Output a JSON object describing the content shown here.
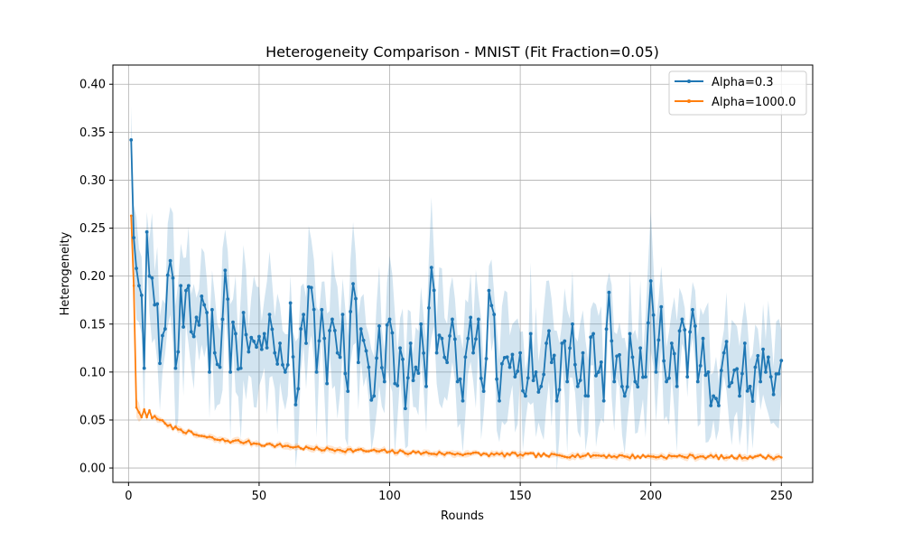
{
  "chart_data": {
    "type": "line",
    "title": "Heterogeneity Comparison - MNIST (Fit Fraction=0.05)",
    "xlabel": "Rounds",
    "ylabel": "Heterogeneity",
    "xlim": [
      -6,
      262
    ],
    "ylim": [
      -0.015,
      0.42
    ],
    "xticks": [
      0,
      50,
      100,
      150,
      200,
      250
    ],
    "yticks": [
      0.0,
      0.05,
      0.1,
      0.15,
      0.2,
      0.25,
      0.3,
      0.35,
      0.4
    ],
    "xtick_labels": [
      "0",
      "50",
      "100",
      "150",
      "200",
      "250"
    ],
    "ytick_labels": [
      "0.00",
      "0.05",
      "0.10",
      "0.15",
      "0.20",
      "0.25",
      "0.30",
      "0.35",
      "0.40"
    ],
    "grid": true,
    "legend_position": "top-right",
    "series": [
      {
        "name": "Alpha=0.3",
        "color": "#1f77b4",
        "band_color": "#1f77b4",
        "marker": "dot",
        "keypoints": [
          [
            1,
            0.342
          ],
          [
            2,
            0.24
          ],
          [
            3,
            0.208
          ],
          [
            4,
            0.19
          ],
          [
            5,
            0.18
          ],
          [
            6,
            0.104
          ],
          [
            7,
            0.246
          ],
          [
            8,
            0.2
          ],
          [
            9,
            0.198
          ],
          [
            10,
            0.17
          ],
          [
            11,
            0.171
          ],
          [
            12,
            0.109
          ],
          [
            13,
            0.138
          ],
          [
            14,
            0.145
          ],
          [
            15,
            0.201
          ],
          [
            16,
            0.216
          ],
          [
            17,
            0.198
          ],
          [
            18,
            0.104
          ],
          [
            19,
            0.121
          ],
          [
            20,
            0.19
          ],
          [
            21,
            0.147
          ],
          [
            22,
            0.185
          ],
          [
            23,
            0.19
          ],
          [
            24,
            0.142
          ],
          [
            25,
            0.137
          ],
          [
            26,
            0.157
          ],
          [
            27,
            0.149
          ],
          [
            28,
            0.179
          ],
          [
            29,
            0.17
          ],
          [
            30,
            0.162
          ],
          [
            31,
            0.1
          ],
          [
            32,
            0.165
          ],
          [
            33,
            0.12
          ],
          [
            34,
            0.108
          ],
          [
            35,
            0.105
          ],
          [
            36,
            0.155
          ],
          [
            37,
            0.206
          ],
          [
            38,
            0.176
          ],
          [
            39,
            0.1
          ],
          [
            40,
            0.152
          ],
          [
            41,
            0.14
          ],
          [
            42,
            0.103
          ],
          [
            43,
            0.104
          ],
          [
            44,
            0.162
          ],
          [
            45,
            0.139
          ],
          [
            46,
            0.121
          ],
          [
            47,
            0.136
          ],
          [
            48,
            0.132
          ],
          [
            49,
            0.126
          ],
          [
            50,
            0.137
          ],
          [
            52,
            0.14
          ],
          [
            54,
            0.16
          ],
          [
            56,
            0.12
          ],
          [
            58,
            0.13
          ],
          [
            60,
            0.1
          ],
          [
            62,
            0.172
          ],
          [
            64,
            0.066
          ],
          [
            66,
            0.145
          ],
          [
            68,
            0.13
          ],
          [
            70,
            0.188
          ],
          [
            72,
            0.1
          ],
          [
            74,
            0.165
          ],
          [
            76,
            0.088
          ],
          [
            78,
            0.155
          ],
          [
            80,
            0.12
          ],
          [
            82,
            0.16
          ],
          [
            84,
            0.08
          ],
          [
            86,
            0.192
          ],
          [
            88,
            0.11
          ],
          [
            90,
            0.133
          ],
          [
            92,
            0.105
          ],
          [
            94,
            0.075
          ],
          [
            96,
            0.148
          ],
          [
            98,
            0.09
          ],
          [
            100,
            0.155
          ],
          [
            102,
            0.088
          ],
          [
            104,
            0.125
          ],
          [
            106,
            0.062
          ],
          [
            108,
            0.13
          ],
          [
            110,
            0.105
          ],
          [
            112,
            0.15
          ],
          [
            114,
            0.085
          ],
          [
            116,
            0.209
          ],
          [
            118,
            0.12
          ],
          [
            120,
            0.135
          ],
          [
            122,
            0.11
          ],
          [
            124,
            0.155
          ],
          [
            126,
            0.09
          ],
          [
            128,
            0.07
          ],
          [
            130,
            0.135
          ],
          [
            132,
            0.12
          ],
          [
            134,
            0.155
          ],
          [
            136,
            0.08
          ],
          [
            138,
            0.185
          ],
          [
            140,
            0.16
          ],
          [
            142,
            0.07
          ],
          [
            144,
            0.115
          ],
          [
            146,
            0.105
          ],
          [
            148,
            0.095
          ],
          [
            150,
            0.12
          ],
          [
            152,
            0.075
          ],
          [
            154,
            0.14
          ],
          [
            156,
            0.1
          ],
          [
            158,
            0.085
          ],
          [
            160,
            0.13
          ],
          [
            162,
            0.11
          ],
          [
            164,
            0.07
          ],
          [
            166,
            0.13
          ],
          [
            168,
            0.09
          ],
          [
            170,
            0.15
          ],
          [
            172,
            0.085
          ],
          [
            174,
            0.12
          ],
          [
            176,
            0.075
          ],
          [
            178,
            0.14
          ],
          [
            180,
            0.1
          ],
          [
            182,
            0.07
          ],
          [
            184,
            0.183
          ],
          [
            186,
            0.09
          ],
          [
            188,
            0.118
          ],
          [
            190,
            0.075
          ],
          [
            192,
            0.14
          ],
          [
            194,
            0.09
          ],
          [
            196,
            0.125
          ],
          [
            198,
            0.095
          ],
          [
            200,
            0.195
          ],
          [
            202,
            0.1
          ],
          [
            204,
            0.168
          ],
          [
            206,
            0.09
          ],
          [
            208,
            0.13
          ],
          [
            210,
            0.085
          ],
          [
            212,
            0.155
          ],
          [
            214,
            0.095
          ],
          [
            216,
            0.165
          ],
          [
            218,
            0.09
          ],
          [
            220,
            0.135
          ],
          [
            222,
            0.1
          ],
          [
            224,
            0.075
          ],
          [
            226,
            0.065
          ],
          [
            228,
            0.12
          ],
          [
            230,
            0.085
          ],
          [
            232,
            0.102
          ],
          [
            234,
            0.075
          ],
          [
            236,
            0.13
          ],
          [
            238,
            0.085
          ],
          [
            240,
            0.105
          ],
          [
            242,
            0.09
          ],
          [
            244,
            0.1
          ],
          [
            246,
            0.095
          ],
          [
            248,
            0.098
          ],
          [
            250,
            0.112
          ]
        ]
      },
      {
        "name": "Alpha=1000.0",
        "color": "#ff7f0e",
        "band_color": "#ff7f0e",
        "marker": "dot",
        "keypoints": [
          [
            1,
            0.263
          ],
          [
            2,
            0.19
          ],
          [
            3,
            0.063
          ],
          [
            4,
            0.058
          ],
          [
            5,
            0.053
          ],
          [
            6,
            0.061
          ],
          [
            7,
            0.053
          ],
          [
            8,
            0.06
          ],
          [
            9,
            0.052
          ],
          [
            10,
            0.054
          ],
          [
            12,
            0.05
          ],
          [
            15,
            0.044
          ],
          [
            20,
            0.04
          ],
          [
            25,
            0.035
          ],
          [
            30,
            0.032
          ],
          [
            35,
            0.029
          ],
          [
            40,
            0.028
          ],
          [
            45,
            0.027
          ],
          [
            50,
            0.025
          ],
          [
            55,
            0.024
          ],
          [
            60,
            0.023
          ],
          [
            70,
            0.02
          ],
          [
            80,
            0.019
          ],
          [
            90,
            0.018
          ],
          [
            100,
            0.017
          ],
          [
            110,
            0.016
          ],
          [
            120,
            0.015
          ],
          [
            130,
            0.015
          ],
          [
            140,
            0.014
          ],
          [
            150,
            0.014
          ],
          [
            160,
            0.013
          ],
          [
            170,
            0.013
          ],
          [
            180,
            0.013
          ],
          [
            190,
            0.012
          ],
          [
            200,
            0.012
          ],
          [
            210,
            0.012
          ],
          [
            220,
            0.012
          ],
          [
            230,
            0.011
          ],
          [
            240,
            0.012
          ],
          [
            250,
            0.011
          ]
        ]
      }
    ]
  }
}
